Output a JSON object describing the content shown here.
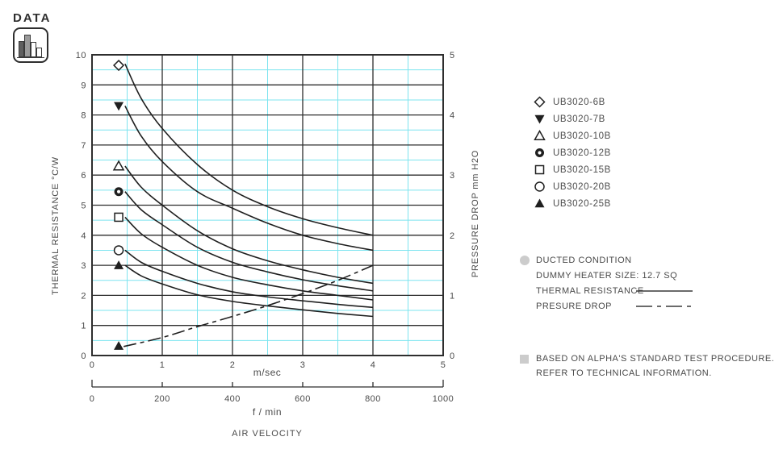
{
  "badge": {
    "label": "DATA",
    "icon": "bar-chart-icon"
  },
  "chart_data": {
    "type": "line",
    "title": "",
    "x_axis_primary": {
      "label": "m/sec",
      "min": 0,
      "max": 5,
      "ticks": [
        0,
        1,
        2,
        3,
        4,
        5
      ],
      "minor_step": 0.5
    },
    "x_axis_secondary": {
      "label": "f / min",
      "min": 0,
      "max": 1000,
      "ticks": [
        0,
        200,
        400,
        600,
        800,
        1000
      ]
    },
    "x_axis_title": "AIR VELOCITY",
    "y_axis_left": {
      "label": "THERMAL RESISTANCE",
      "units": "°C/W",
      "min": 0,
      "max": 10,
      "ticks": [
        10,
        9,
        8,
        7,
        6,
        5,
        4,
        3,
        2,
        1,
        0
      ],
      "minor_step": 0.5
    },
    "y_axis_right": {
      "label": "PRESSURE DROP",
      "units": "mm H2O",
      "min": 0,
      "max": 5,
      "ticks": [
        5,
        4,
        3,
        2,
        1,
        0
      ]
    },
    "grid": {
      "major_on": true,
      "minor_on": true
    },
    "colors": {
      "curve": "#1f1f1f",
      "grid_major": "#2e2e2e",
      "grid_minor": "#7de4ef",
      "text": "#4a4a4a"
    },
    "series": [
      {
        "name": "UB3020-6B",
        "axis": "left",
        "style": "solid",
        "marker": "diamond-open",
        "marker_point": [
          0.38,
          9.65
        ],
        "points": [
          [
            0.47,
            9.7
          ],
          [
            0.7,
            8.55
          ],
          [
            1,
            7.55
          ],
          [
            1.5,
            6.35
          ],
          [
            2,
            5.5
          ],
          [
            2.5,
            4.95
          ],
          [
            3,
            4.55
          ],
          [
            3.5,
            4.25
          ],
          [
            4,
            4.0
          ]
        ]
      },
      {
        "name": "UB3020-7B",
        "axis": "left",
        "style": "solid",
        "marker": "triangle-down-filled",
        "marker_point": [
          0.38,
          8.3
        ],
        "points": [
          [
            0.47,
            8.3
          ],
          [
            0.7,
            7.3
          ],
          [
            1,
            6.45
          ],
          [
            1.5,
            5.45
          ],
          [
            2,
            4.9
          ],
          [
            2.5,
            4.4
          ],
          [
            3,
            4.0
          ],
          [
            3.5,
            3.72
          ],
          [
            4,
            3.5
          ]
        ]
      },
      {
        "name": "UB3020-10B",
        "axis": "left",
        "style": "solid",
        "marker": "triangle-up-open",
        "marker_point": [
          0.38,
          6.3
        ],
        "points": [
          [
            0.47,
            6.3
          ],
          [
            0.7,
            5.6
          ],
          [
            1,
            5.0
          ],
          [
            1.5,
            4.15
          ],
          [
            2,
            3.55
          ],
          [
            2.5,
            3.15
          ],
          [
            3,
            2.85
          ],
          [
            3.5,
            2.6
          ],
          [
            4,
            2.4
          ]
        ]
      },
      {
        "name": "UB3020-12B",
        "axis": "left",
        "style": "solid",
        "marker": "circle-bullseye",
        "marker_point": [
          0.38,
          5.45
        ],
        "points": [
          [
            0.47,
            5.45
          ],
          [
            0.7,
            4.85
          ],
          [
            1,
            4.35
          ],
          [
            1.5,
            3.6
          ],
          [
            2,
            3.1
          ],
          [
            2.5,
            2.78
          ],
          [
            3,
            2.52
          ],
          [
            3.5,
            2.32
          ],
          [
            4,
            2.15
          ]
        ]
      },
      {
        "name": "UB3020-15B",
        "axis": "left",
        "style": "solid",
        "marker": "square-open",
        "marker_point": [
          0.38,
          4.6
        ],
        "points": [
          [
            0.47,
            4.6
          ],
          [
            0.7,
            4.05
          ],
          [
            1,
            3.6
          ],
          [
            1.5,
            3.0
          ],
          [
            2,
            2.6
          ],
          [
            2.5,
            2.35
          ],
          [
            3,
            2.15
          ],
          [
            3.5,
            2.0
          ],
          [
            4,
            1.85
          ]
        ]
      },
      {
        "name": "UB3020-20B",
        "axis": "left",
        "style": "solid",
        "marker": "circle-open",
        "marker_point": [
          0.38,
          3.5
        ],
        "points": [
          [
            0.47,
            3.5
          ],
          [
            0.7,
            3.1
          ],
          [
            1,
            2.8
          ],
          [
            1.5,
            2.4
          ],
          [
            2,
            2.12
          ],
          [
            2.5,
            1.95
          ],
          [
            3,
            1.82
          ],
          [
            3.5,
            1.7
          ],
          [
            4,
            1.6
          ]
        ]
      },
      {
        "name": "UB3020-25B",
        "axis": "left",
        "style": "solid",
        "marker": "triangle-up-filled",
        "marker_point": [
          0.38,
          3.0
        ],
        "points": [
          [
            0.47,
            3.0
          ],
          [
            0.7,
            2.65
          ],
          [
            1,
            2.38
          ],
          [
            1.5,
            2.02
          ],
          [
            2,
            1.8
          ],
          [
            2.5,
            1.65
          ],
          [
            3,
            1.52
          ],
          [
            3.5,
            1.4
          ],
          [
            4,
            1.3
          ]
        ]
      },
      {
        "name": "PRESSURE DROP",
        "axis": "right",
        "style": "dash-dot",
        "marker": "triangle-up-filled",
        "marker_point": [
          0.38,
          0.16
        ],
        "points": [
          [
            0.45,
            0.15
          ],
          [
            1,
            0.3
          ],
          [
            1.5,
            0.48
          ],
          [
            2,
            0.65
          ],
          [
            2.5,
            0.83
          ],
          [
            3,
            1.03
          ],
          [
            3.5,
            1.25
          ],
          [
            4,
            1.5
          ]
        ]
      }
    ]
  },
  "legend": {
    "items": [
      {
        "marker": "diamond-open",
        "label": "UB3020-6B"
      },
      {
        "marker": "triangle-down-filled",
        "label": "UB3020-7B"
      },
      {
        "marker": "triangle-up-open",
        "label": "UB3020-10B"
      },
      {
        "marker": "circle-bullseye",
        "label": "UB3020-12B"
      },
      {
        "marker": "square-open",
        "label": "UB3020-15B"
      },
      {
        "marker": "circle-open",
        "label": "UB3020-20B"
      },
      {
        "marker": "triangle-up-filled",
        "label": "UB3020-25B"
      }
    ]
  },
  "notes": {
    "condition": "DUCTED CONDITION",
    "heater": "DUMMY HEATER SIZE: 12.7 SQ",
    "thermal_label": "THERMAL RESISTANCE",
    "pressure_label": "PRESURE DROP"
  },
  "footnote": {
    "line1": "BASED ON ALPHA'S STANDARD TEST PROCEDURE.",
    "line2": "REFER TO TECHNICAL INFORMATION."
  }
}
